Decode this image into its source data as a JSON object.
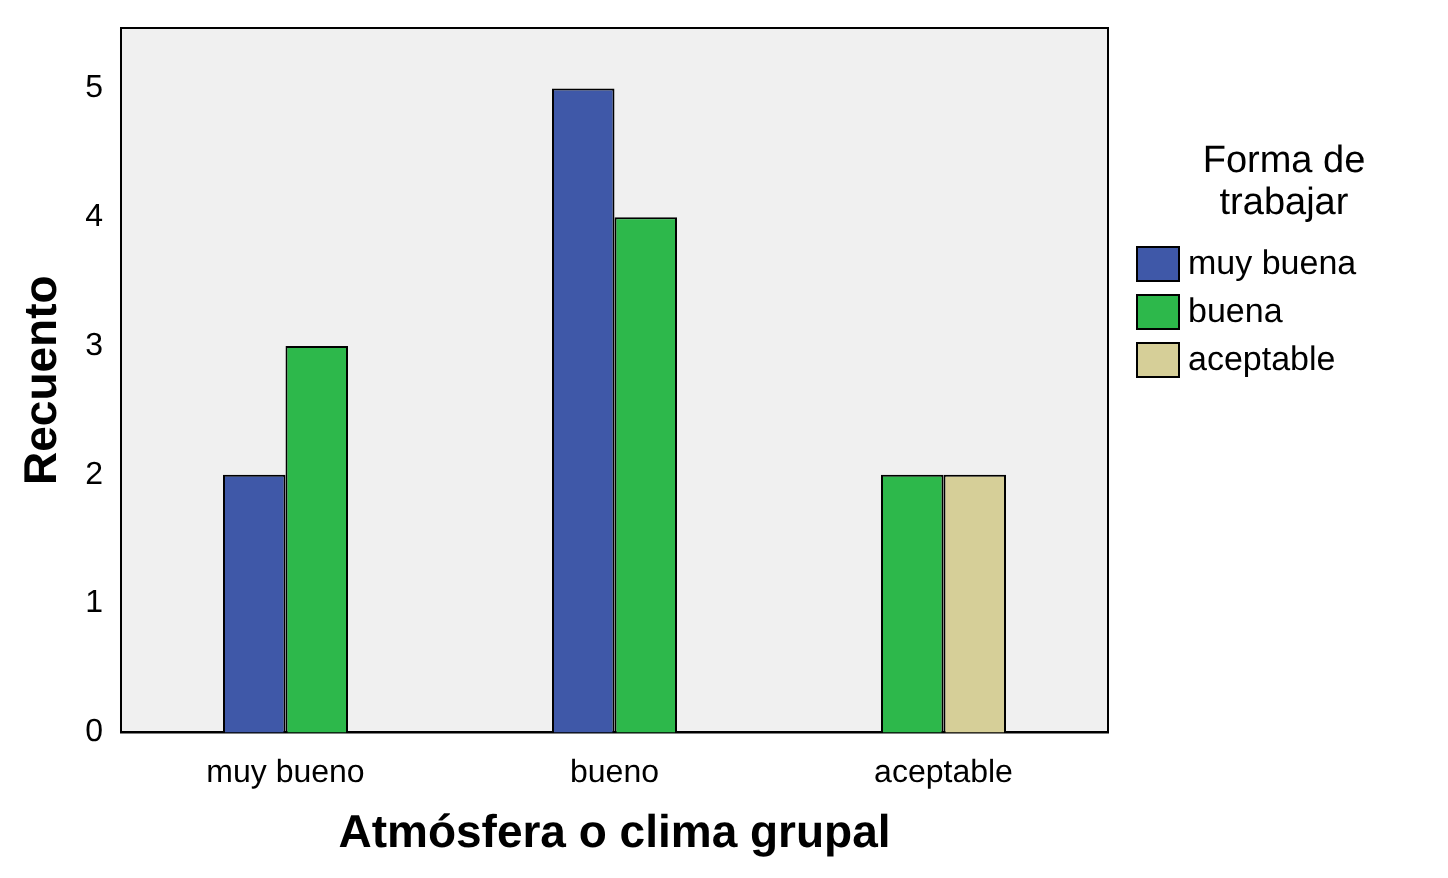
{
  "chart_data": {
    "type": "bar",
    "xlabel": "Atmósfera o clima grupal",
    "ylabel": "Recuento",
    "legend_title": "Forma de trabajar",
    "legend": "right",
    "categories": [
      "muy bueno",
      "bueno",
      "aceptable"
    ],
    "series": [
      {
        "name": "muy buena",
        "color": "#3f58a8",
        "values": [
          2,
          5,
          null
        ]
      },
      {
        "name": "buena",
        "color": "#2db84b",
        "values": [
          3,
          4,
          2
        ]
      },
      {
        "name": "aceptable",
        "color": "#d6cf98",
        "values": [
          null,
          null,
          2
        ]
      }
    ],
    "ylim": [
      0,
      5.47
    ],
    "yticks": [
      0,
      1,
      2,
      3,
      4,
      5
    ]
  }
}
